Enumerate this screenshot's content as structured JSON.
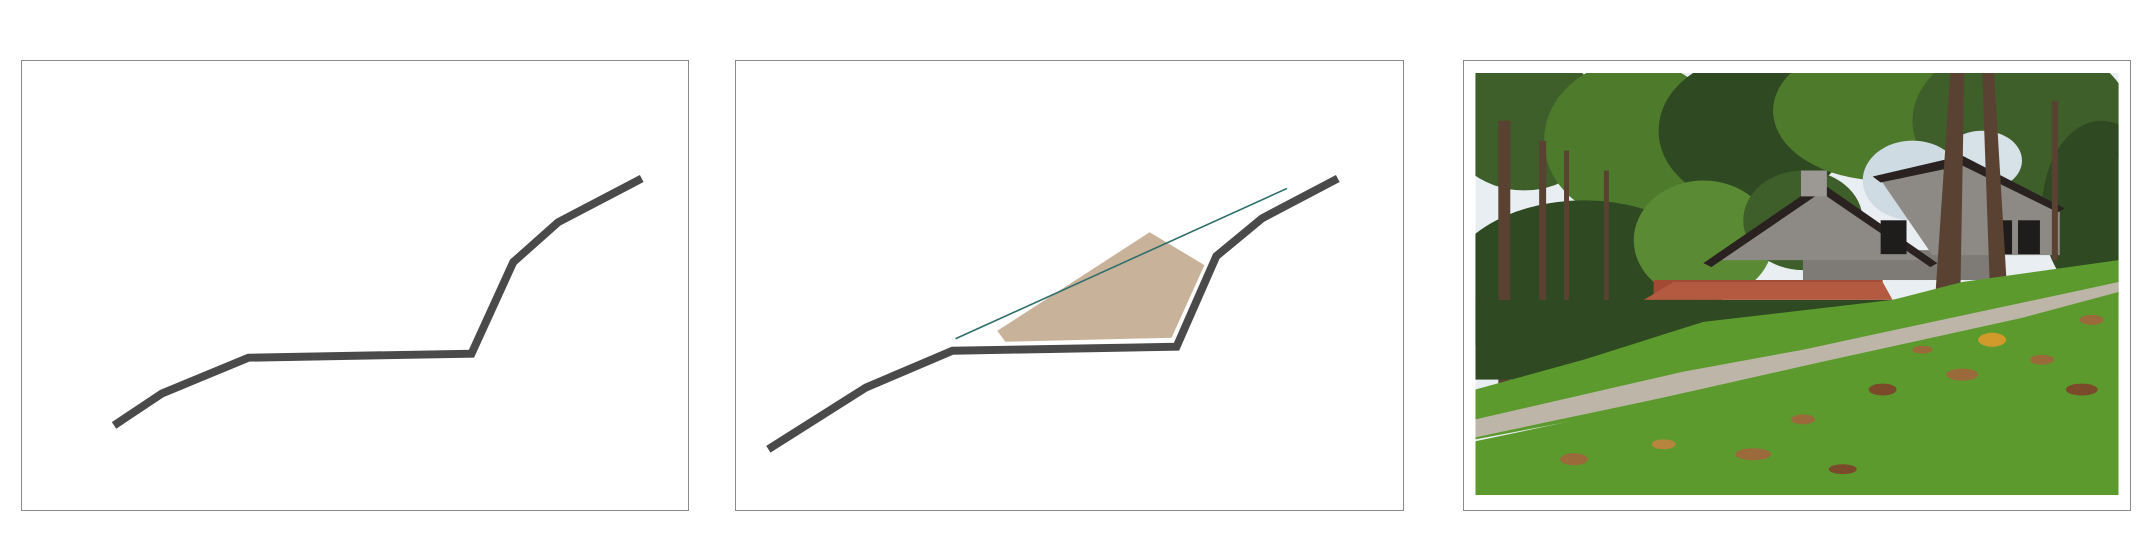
{
  "figure": {
    "panels": [
      {
        "id": "original-terrain",
        "kind": "diagram"
      },
      {
        "id": "terrain-with-fill",
        "kind": "diagram"
      },
      {
        "id": "terraced-hillside",
        "kind": "photograph"
      }
    ]
  },
  "colors": {
    "ground_line": "#4a4a4a",
    "fill_region": "#c8b29a",
    "slope_line": "#2e6e6a",
    "panel_border": "#8a8a8a",
    "sky": "#e8eef2",
    "foliage_dark": "#2f4a22",
    "foliage_mid": "#4e7a2c",
    "grass": "#5c9a2e",
    "house_wall": "#8d8a86",
    "roof_dark": "#2a2220",
    "roof_tile": "#a34a34",
    "path": "#bdb6a8",
    "tree_trunk": "#5a4232",
    "dry_leaf": "#9a6a3a"
  },
  "icons": {
    "photo_subject": "hillside-house-photo"
  }
}
